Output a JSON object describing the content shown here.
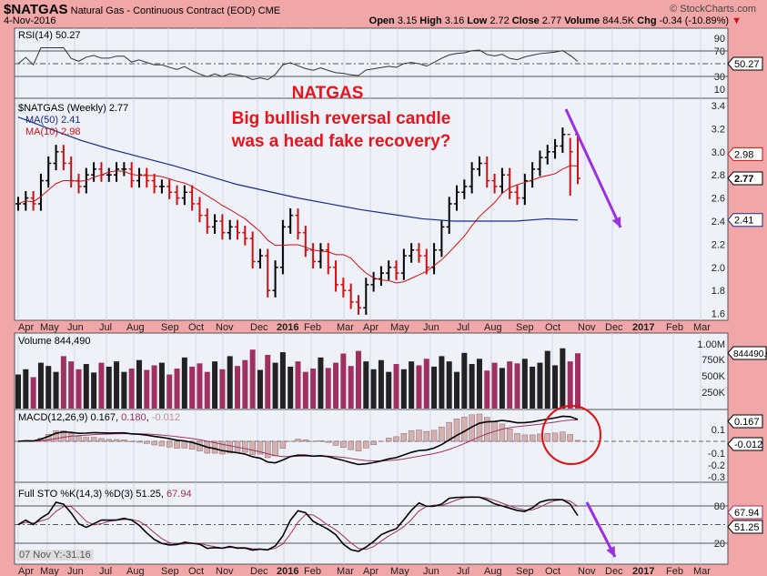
{
  "header": {
    "symbol": "$NATGAS",
    "name": "Natural Gas - Continuous Contract (EOD)",
    "exchange": "CME",
    "date": "4-Nov-2016",
    "brand": "© StockCharts.com",
    "quote": [
      {
        "k": "Open",
        "v": "3.15"
      },
      {
        "k": "High",
        "v": "3.16"
      },
      {
        "k": "Low",
        "v": "2.72"
      },
      {
        "k": "Close",
        "v": "2.77"
      },
      {
        "k": "Volume",
        "v": "844.5K"
      },
      {
        "k": "Chg",
        "v": "-0.34 (-10.89%)"
      }
    ]
  },
  "annotations": {
    "title": "NATGAS",
    "line1": "Big bullish reversal candle",
    "line2": "was a head fake recovery?"
  },
  "status": "07 Nov Y:-31.16",
  "colors": {
    "up": "#000000",
    "down": "#d01010",
    "ma50": "#1a2a8a",
    "ma10": "#d01010",
    "vol_down": "#a03060",
    "annot": "#e8141c",
    "arrow": "#9b30e0"
  },
  "chart_data": {
    "type": "line",
    "months": [
      "Apr",
      "May",
      "Jun",
      "Jul",
      "Aug",
      "Sep",
      "Oct",
      "Nov",
      "Dec",
      "2016",
      "Feb",
      "Mar",
      "Apr",
      "May",
      "Jun",
      "Jul",
      "Aug",
      "Sep",
      "Oct",
      "Nov",
      "Dec",
      "2017",
      "Feb",
      "Mar"
    ],
    "price": {
      "label": "$NATGAS (Weekly) 2.77",
      "ma50_label": "MA(50) 2.41",
      "ma10_label": "MA(10) 2.98",
      "ticks": [
        "3.4",
        "3.2",
        "3.0",
        "2.8",
        "2.6",
        "2.4",
        "2.2",
        "2.0",
        "1.8",
        "1.6"
      ],
      "closes": [
        2.55,
        2.6,
        2.55,
        2.75,
        2.9,
        3.0,
        2.9,
        2.75,
        2.7,
        2.8,
        2.85,
        2.8,
        2.8,
        2.85,
        2.85,
        2.75,
        2.8,
        2.75,
        2.7,
        2.7,
        2.65,
        2.6,
        2.65,
        2.55,
        2.45,
        2.35,
        2.4,
        2.3,
        2.35,
        2.3,
        2.25,
        2.05,
        2.1,
        1.8,
        2.0,
        2.35,
        2.45,
        2.3,
        2.15,
        2.05,
        2.15,
        2.0,
        1.85,
        1.8,
        1.7,
        1.65,
        1.85,
        1.9,
        1.95,
        2.0,
        1.95,
        2.1,
        2.15,
        2.1,
        2.0,
        2.15,
        2.35,
        2.55,
        2.65,
        2.7,
        2.85,
        2.9,
        2.75,
        2.7,
        2.8,
        2.65,
        2.6,
        2.75,
        2.85,
        2.95,
        3.0,
        3.05,
        3.15,
        3.0,
        2.77
      ],
      "last_bar": {
        "open": 3.15,
        "high": 3.16,
        "low": 2.72,
        "close": 2.77
      },
      "ma50": [
        3.3,
        3.2,
        3.1,
        3.02,
        2.95,
        2.88,
        2.8,
        2.72,
        2.66,
        2.6,
        2.55,
        2.5,
        2.46,
        2.42,
        2.4,
        2.4,
        2.4,
        2.42,
        2.41
      ],
      "tags": {
        "ma10": "2.98",
        "close": "2.77",
        "ma50": "2.41"
      },
      "ylim": [
        1.6,
        3.4
      ]
    },
    "rsi": {
      "label": "RSI(14) 50.27",
      "ticks": [
        "90",
        "70",
        "30",
        "10"
      ],
      "value": "50.27"
    },
    "volume": {
      "label": "Volume 844,490",
      "ticks": [
        "1.00M",
        "750K",
        "500K",
        "250K"
      ],
      "tag": "844490.0",
      "values_k": [
        520,
        600,
        480,
        700,
        650,
        560,
        800,
        720,
        600,
        680,
        550,
        700,
        640,
        720,
        560,
        610,
        740,
        590,
        660,
        700,
        520,
        610,
        780,
        640,
        690,
        560,
        720,
        600,
        800,
        650,
        740,
        900,
        590,
        820,
        700,
        860,
        640,
        720,
        560,
        610,
        780,
        620,
        700,
        840,
        650,
        880,
        720,
        600,
        740,
        560,
        680,
        600,
        720,
        660,
        760,
        640,
        800,
        720,
        560,
        850,
        680,
        760,
        580,
        700,
        620,
        720,
        690,
        760,
        640,
        700,
        880,
        660,
        920,
        720,
        844
      ]
    },
    "macd": {
      "label": "MACD(12,26,9)",
      "v1": "0.167",
      "v2": "0.180",
      "v3": "-0.012",
      "ticks": [
        "0.1",
        "-0.1",
        "-0.2",
        "-0.3"
      ],
      "tag1": "0.167",
      "tag2": "-0.012"
    },
    "sto": {
      "label": "Full STO %K(14,3) %D(3)",
      "k": "51.25",
      "d": "67.94",
      "ticks": [
        "80",
        "20"
      ],
      "tag_d": "67.94",
      "tag_k": "51.25"
    }
  }
}
